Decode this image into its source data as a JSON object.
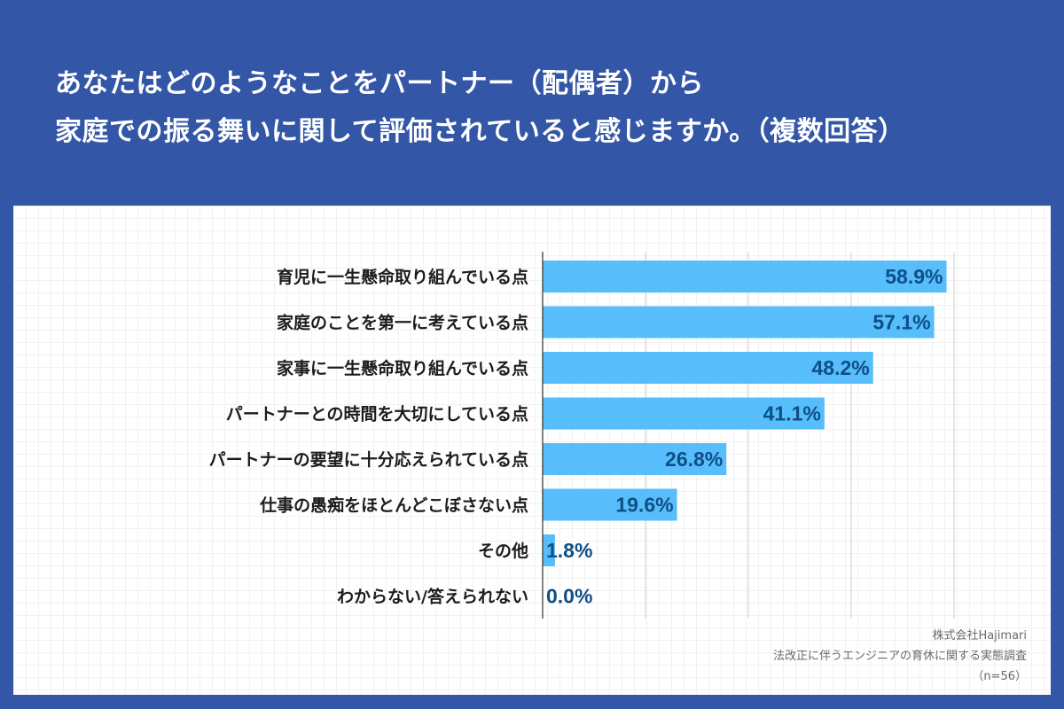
{
  "title": {
    "line1": "あなたはどのようなことをパートナー（配偶者）から",
    "line2": "家庭での振る舞いに関して評価されていると感じますか。（複数回答）"
  },
  "chart_data": {
    "type": "bar",
    "orientation": "horizontal",
    "categories": [
      "育児に一生懸命取り組んでいる点",
      "家庭のことを第一に考えている点",
      "家事に一生懸命取り組んでいる点",
      "パートナーとの時間を大切にしている点",
      "パートナーの要望に十分応えられている点",
      "仕事の愚痴をほとんどこぼさない点",
      "その他",
      "わからない/答えられない"
    ],
    "values": [
      58.9,
      57.1,
      48.2,
      41.1,
      26.8,
      19.6,
      1.8,
      0.0
    ],
    "value_labels": [
      "58.9%",
      "57.1%",
      "48.2%",
      "41.1%",
      "26.8%",
      "19.6%",
      "1.8%",
      "0.0%"
    ],
    "xlim": [
      0,
      60
    ],
    "gridlines": [
      15,
      30,
      45,
      60
    ],
    "bar_color": "#57bdfb",
    "label_color": "#0e4f86"
  },
  "source": {
    "company": "株式会社Hajimari",
    "survey": "法改正に伴うエンジニアの育休に関する実態調査",
    "n": "（n=56）"
  }
}
